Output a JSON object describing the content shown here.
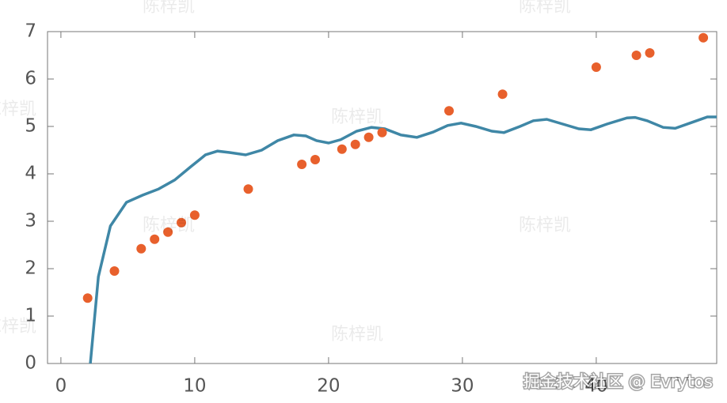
{
  "chart_data": {
    "type": "scatter",
    "xlim": [
      -1,
      49
    ],
    "ylim": [
      0,
      7
    ],
    "xticks": [
      0,
      10,
      20,
      30,
      40
    ],
    "yticks": [
      0,
      1,
      2,
      3,
      4,
      5,
      6,
      7
    ],
    "frame": true,
    "series": [
      {
        "type": "line",
        "color": "#3f87a6",
        "x": [
          2.2,
          2.8,
          3.7,
          4.9,
          6.1,
          7.3,
          8.5,
          9.7,
          10.8,
          11.7,
          12.6,
          13.8,
          15,
          16.2,
          17.4,
          18.3,
          19.1,
          20,
          20.9,
          22.1,
          23.2,
          24.2,
          25.4,
          26.6,
          27.8,
          28.9,
          29.9,
          31,
          32.2,
          33.1,
          34.3,
          35.3,
          36.3,
          37.5,
          38.7,
          39.6,
          40.8,
          42.3,
          42.9,
          43.8,
          45,
          45.9,
          47.1,
          48.3,
          49
        ],
        "values": [
          0,
          1.83,
          2.9,
          3.4,
          3.55,
          3.68,
          3.87,
          4.15,
          4.4,
          4.48,
          4.45,
          4.4,
          4.5,
          4.7,
          4.82,
          4.8,
          4.7,
          4.65,
          4.72,
          4.9,
          4.98,
          4.95,
          4.82,
          4.77,
          4.88,
          5.02,
          5.07,
          5.0,
          4.9,
          4.87,
          5.0,
          5.12,
          5.15,
          5.05,
          4.95,
          4.93,
          5.05,
          5.18,
          5.19,
          5.12,
          4.98,
          4.96,
          5.08,
          5.2,
          5.2
        ]
      },
      {
        "type": "scatter",
        "color": "#e8602c",
        "x": [
          2,
          4,
          6,
          7,
          8,
          9,
          10,
          14,
          18,
          19,
          21,
          22,
          23,
          24,
          29,
          33,
          40,
          43,
          44,
          48
        ],
        "values": [
          1.38,
          1.95,
          2.42,
          2.62,
          2.77,
          2.97,
          3.13,
          3.68,
          4.2,
          4.3,
          4.52,
          4.62,
          4.77,
          4.87,
          5.33,
          5.68,
          6.25,
          6.5,
          6.55,
          6.87
        ]
      }
    ]
  },
  "watermark": "陈梓凯",
  "credit": "掘金技术社区 @ Evrytos"
}
